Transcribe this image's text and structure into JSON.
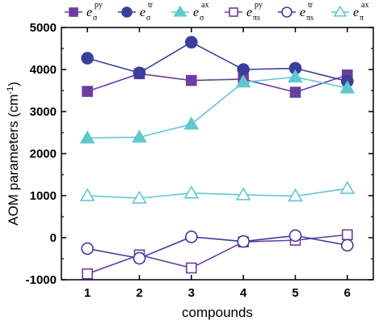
{
  "chart_data": {
    "type": "line",
    "xlabel": "compounds",
    "ylabel": "AOM parameters (cm",
    "ylabel_sup": "-1",
    "ylabel_close": ")",
    "x": [
      1,
      2,
      3,
      4,
      5,
      6
    ],
    "x_ticks": [
      "1",
      "2",
      "3",
      "4",
      "5",
      "6"
    ],
    "xlim": [
      0.5,
      6.5
    ],
    "ylim": [
      -1000,
      5000
    ],
    "y_ticks": [
      "-1000",
      "0",
      "1000",
      "2000",
      "3000",
      "4000",
      "5000"
    ],
    "y_tick_values": [
      -1000,
      0,
      1000,
      2000,
      3000,
      4000,
      5000
    ],
    "grid": false,
    "legend_position": "top",
    "series": [
      {
        "name": "e",
        "sub": "σ",
        "sup": "py",
        "color": "#6a3fa0",
        "marker": "square",
        "filled": true,
        "values": [
          3480,
          3900,
          3740,
          3770,
          3460,
          3870
        ]
      },
      {
        "name": "e",
        "sub": "σ",
        "sup": "tr",
        "color": "#3a3f9e",
        "marker": "circle",
        "filled": true,
        "values": [
          4270,
          3920,
          4650,
          4000,
          4030,
          3720
        ]
      },
      {
        "name": "e",
        "sub": "σ",
        "sup": "ax",
        "color": "#5fc8cf",
        "marker": "triangle",
        "filled": true,
        "values": [
          2370,
          2390,
          2700,
          3700,
          3820,
          3560
        ]
      },
      {
        "name": "e",
        "sub": "πs",
        "sup": "py",
        "color": "#6a3fa0",
        "marker": "square",
        "filled": false,
        "values": [
          -860,
          -410,
          -720,
          -100,
          -60,
          70
        ]
      },
      {
        "name": "e",
        "sub": "πs",
        "sup": "tr",
        "color": "#3a3f9e",
        "marker": "circle",
        "filled": false,
        "values": [
          -260,
          -490,
          20,
          -90,
          50,
          -180
        ]
      },
      {
        "name": "e",
        "sub": "π",
        "sup": "ax",
        "color": "#5fc8cf",
        "marker": "triangle",
        "filled": false,
        "values": [
          1000,
          940,
          1060,
          1020,
          990,
          1170
        ]
      }
    ]
  }
}
